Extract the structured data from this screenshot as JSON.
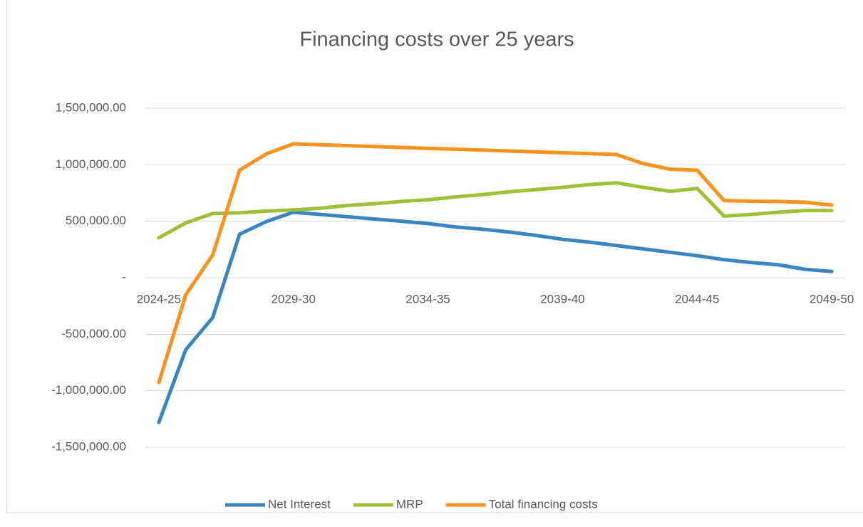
{
  "chart_data": {
    "type": "line",
    "title": "Financing costs over 25 years",
    "categories": [
      "2024-25",
      null,
      null,
      null,
      null,
      "2029-30",
      null,
      null,
      null,
      null,
      "2034-35",
      null,
      null,
      null,
      null,
      "2039-40",
      null,
      null,
      null,
      null,
      "2044-45",
      null,
      null,
      null,
      null,
      "2049-50"
    ],
    "series": [
      {
        "name": "Net Interest",
        "color": "#3a86c0",
        "values": [
          -1280000,
          -637000,
          -353000,
          385000,
          498000,
          580000,
          560000,
          540000,
          520000,
          500000,
          480000,
          450000,
          430000,
          405000,
          375000,
          340000,
          315000,
          285000,
          255000,
          225000,
          195000,
          160000,
          135000,
          115000,
          75000,
          55000
        ]
      },
      {
        "name": "MRP",
        "color": "#a2c037",
        "values": [
          353000,
          485000,
          568000,
          575000,
          590000,
          600000,
          615000,
          640000,
          655000,
          675000,
          690000,
          715000,
          735000,
          760000,
          780000,
          800000,
          825000,
          840000,
          800000,
          765000,
          790000,
          545000,
          560000,
          580000,
          595000,
          595000
        ]
      },
      {
        "name": "Total financing costs",
        "color": "#f7931e",
        "values": [
          -927000,
          -151000,
          202000,
          952000,
          1097000,
          1185000,
          1177000,
          1169000,
          1161000,
          1153000,
          1145000,
          1138000,
          1130000,
          1122000,
          1114000,
          1106000,
          1098000,
          1090000,
          1010000,
          960000,
          952000,
          683000,
          677000,
          675000,
          668000,
          643000
        ]
      }
    ],
    "ylim": [
      -1500000,
      1500000
    ],
    "yticks": [
      {
        "value": -1500000,
        "label": "-1,500,000.00"
      },
      {
        "value": -1000000,
        "label": "-1,000,000.00"
      },
      {
        "value": -500000,
        "label": "-500,000.00"
      },
      {
        "value": 0,
        "label": "-"
      },
      {
        "value": 500000,
        "label": "500,000.00"
      },
      {
        "value": 1000000,
        "label": "1,000,000.00"
      },
      {
        "value": 1500000,
        "label": "1,500,000.00"
      }
    ],
    "grid": true,
    "legend": "bottom"
  }
}
